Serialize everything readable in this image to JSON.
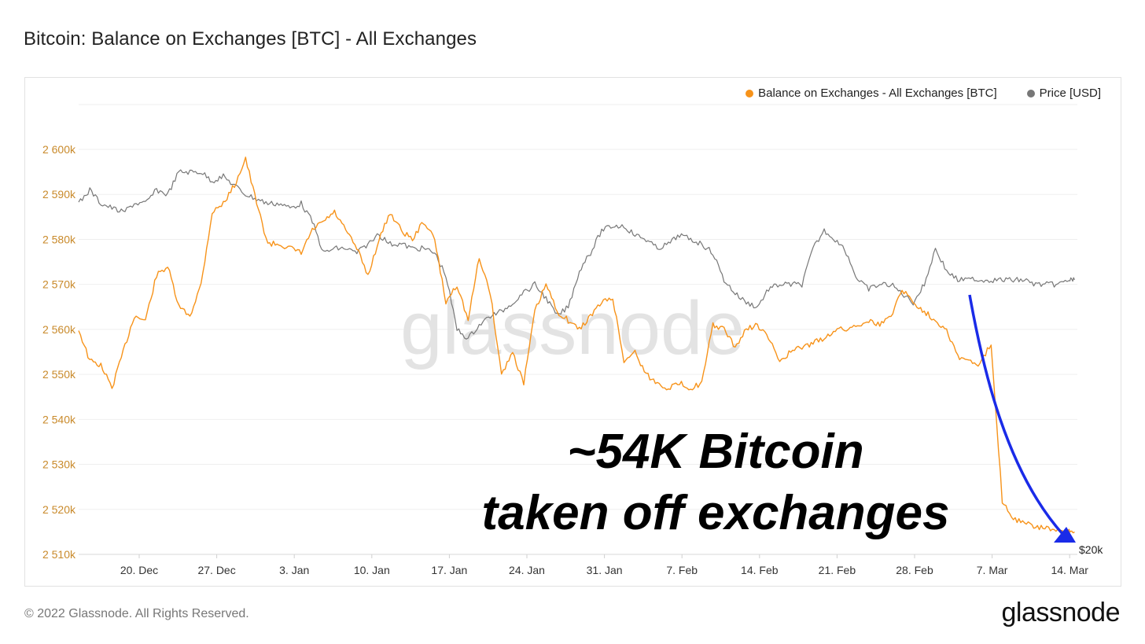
{
  "title": "Bitcoin: Balance on Exchanges [BTC] - All Exchanges",
  "legend": [
    {
      "label": "Balance on Exchanges - All Exchanges [BTC]",
      "color": "#f7931a"
    },
    {
      "label": "Price [USD]",
      "color": "#777777"
    }
  ],
  "watermark": "glassnode",
  "annotation": {
    "line1": "~54K Bitcoin",
    "line2": "taken off exchanges",
    "arrow_color": "#1a2be8"
  },
  "footer": "© 2022 Glassnode. All Rights Reserved.",
  "brand": "glassnode",
  "chart_data": {
    "type": "line",
    "title": "Bitcoin: Balance on Exchanges [BTC] - All Exchanges",
    "x_ticks": [
      "20. Dec",
      "27. Dec",
      "3. Jan",
      "10. Jan",
      "17. Jan",
      "24. Jan",
      "31. Jan",
      "7. Feb",
      "14. Feb",
      "21. Feb",
      "28. Feb",
      "7. Mar",
      "14. Mar"
    ],
    "y_ticks": [
      "2 510k",
      "2 520k",
      "2 530k",
      "2 540k",
      "2 550k",
      "2 560k",
      "2 570k",
      "2 580k",
      "2 590k",
      "2 600k"
    ],
    "ylim": [
      2510000,
      2600000
    ],
    "right_axis_label": "$20k",
    "grid": true,
    "legend_position": "top-right",
    "series": [
      {
        "name": "Balance on Exchanges - All Exchanges [BTC]",
        "color": "#f7931a",
        "x_days": [
          0,
          1,
          2,
          3,
          4,
          5,
          6,
          7,
          8,
          9,
          10,
          11,
          12,
          13,
          14,
          15,
          16,
          17,
          18,
          19,
          20,
          21,
          22,
          23,
          24,
          25,
          26,
          27,
          28,
          29,
          30,
          31,
          32,
          33,
          34,
          35,
          36,
          37,
          38,
          39,
          40,
          41,
          42,
          43,
          44,
          45,
          46,
          47,
          48,
          49,
          50,
          51,
          52,
          53,
          54,
          55,
          56,
          57,
          58,
          59,
          60,
          61,
          62,
          63,
          64,
          65,
          66,
          67,
          68,
          69,
          70,
          71,
          72,
          73,
          74,
          75,
          76,
          77,
          78,
          79,
          80,
          81,
          82,
          83,
          84,
          85,
          86,
          87,
          88,
          89,
          89.5
        ],
        "values": [
          2560000,
          2553000,
          2552000,
          2547000,
          2555000,
          2563000,
          2562000,
          2572000,
          2574000,
          2565000,
          2563000,
          2570000,
          2586000,
          2588000,
          2592000,
          2598000,
          2588000,
          2579000,
          2579000,
          2578000,
          2577000,
          2582000,
          2584000,
          2586000,
          2582000,
          2578000,
          2572000,
          2580000,
          2586000,
          2582000,
          2580000,
          2584000,
          2580000,
          2566000,
          2570000,
          2562000,
          2576000,
          2568000,
          2550000,
          2555000,
          2548000,
          2564000,
          2570000,
          2564000,
          2562000,
          2560000,
          2563000,
          2566000,
          2567000,
          2553000,
          2555000,
          2550000,
          2548000,
          2547000,
          2548000,
          2547000,
          2548000,
          2561000,
          2560000,
          2556000,
          2560000,
          2561000,
          2558000,
          2553000,
          2555000,
          2556000,
          2557000,
          2558000,
          2560000,
          2560000,
          2561000,
          2562000,
          2561000,
          2563000,
          2569000,
          2566000,
          2564000,
          2562000,
          2560000,
          2554000,
          2553000,
          2552000,
          2557000,
          2522000,
          2518000,
          2517000,
          2516000,
          2516000,
          2515000,
          2515000,
          2515000
        ]
      },
      {
        "name": "Price [USD]",
        "color": "#777777",
        "x_days": [
          0,
          1,
          2,
          3,
          4,
          5,
          6,
          7,
          8,
          9,
          10,
          11,
          12,
          13,
          14,
          15,
          16,
          17,
          18,
          19,
          20,
          21,
          22,
          23,
          24,
          25,
          26,
          27,
          28,
          29,
          30,
          31,
          32,
          33,
          34,
          35,
          36,
          37,
          38,
          39,
          40,
          41,
          42,
          43,
          44,
          45,
          46,
          47,
          48,
          49,
          50,
          51,
          52,
          53,
          54,
          55,
          56,
          57,
          58,
          59,
          60,
          61,
          62,
          63,
          64,
          65,
          66,
          67,
          68,
          69,
          70,
          71,
          72,
          73,
          74,
          75,
          76,
          77,
          78,
          79,
          80,
          81,
          82,
          83,
          84,
          85,
          86,
          87,
          88,
          89,
          89.5
        ],
        "values": [
          2588000,
          2591000,
          2588000,
          2587000,
          2586000,
          2588000,
          2588000,
          2591000,
          2590000,
          2595000,
          2595000,
          2595000,
          2593000,
          2594000,
          2592000,
          2590000,
          2589000,
          2588000,
          2588000,
          2587000,
          2588000,
          2584000,
          2577000,
          2578000,
          2578000,
          2577000,
          2579000,
          2581000,
          2579000,
          2579000,
          2578000,
          2578000,
          2577000,
          2572000,
          2560000,
          2558000,
          2561000,
          2563000,
          2564000,
          2566000,
          2568000,
          2570000,
          2567000,
          2563000,
          2565000,
          2573000,
          2577000,
          2582000,
          2583000,
          2583000,
          2581000,
          2580000,
          2578000,
          2579000,
          2581000,
          2580000,
          2579000,
          2577000,
          2571000,
          2568000,
          2566000,
          2565000,
          2569000,
          2570000,
          2570000,
          2570000,
          2578000,
          2582000,
          2580000,
          2577000,
          2571000,
          2569000,
          2570000,
          2570000,
          2568000,
          2566000,
          2570000,
          2578000,
          2573000,
          2571000,
          2571000,
          2571000,
          2571000,
          2571000,
          2571000,
          2571000,
          2570000,
          2570000,
          2570000,
          2571000,
          2571000
        ]
      }
    ]
  }
}
